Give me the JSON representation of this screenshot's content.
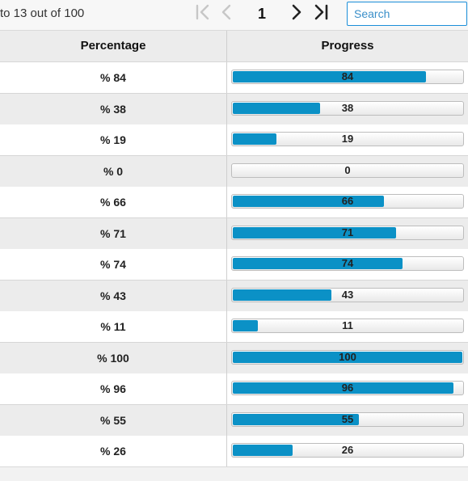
{
  "pager": {
    "info": "to 13 out of 100",
    "current_page": "1",
    "first_icon": "first-page-icon",
    "prev_icon": "previous-page-icon",
    "next_icon": "next-page-icon",
    "last_icon": "last-page-icon"
  },
  "search": {
    "placeholder": "Search",
    "value": ""
  },
  "table": {
    "columns": [
      "Percentage",
      "Progress"
    ],
    "rows": [
      {
        "percentage": "% 84",
        "progress": "84",
        "fraction": 0.84
      },
      {
        "percentage": "% 38",
        "progress": "38",
        "fraction": 0.38
      },
      {
        "percentage": "% 19",
        "progress": "19",
        "fraction": 0.19
      },
      {
        "percentage": "% 0",
        "progress": "0",
        "fraction": 0.0
      },
      {
        "percentage": "% 66",
        "progress": "66",
        "fraction": 0.66
      },
      {
        "percentage": "% 71",
        "progress": "71",
        "fraction": 0.71
      },
      {
        "percentage": "% 74",
        "progress": "74",
        "fraction": 0.74
      },
      {
        "percentage": "% 43",
        "progress": "43",
        "fraction": 0.43
      },
      {
        "percentage": "% 11",
        "progress": "11",
        "fraction": 0.11
      },
      {
        "percentage": "% 100",
        "progress": "100",
        "fraction": 1.0
      },
      {
        "percentage": "% 96",
        "progress": "96",
        "fraction": 0.96
      },
      {
        "percentage": "% 55",
        "progress": "55",
        "fraction": 0.55
      },
      {
        "percentage": "% 26",
        "progress": "26",
        "fraction": 0.26
      }
    ]
  },
  "colors": {
    "progress_fill": "#0b91c6",
    "search_border": "#1b8fd9",
    "alt_row": "#ececec"
  }
}
